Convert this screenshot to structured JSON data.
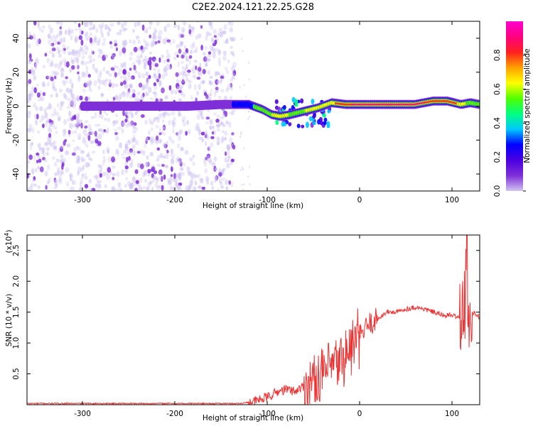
{
  "title": "C2E2.2024.121.22.25.G28",
  "chart_data": [
    {
      "type": "heatmap",
      "xlabel": "Height of straight line (km)",
      "ylabel": "Frequency (Hz)",
      "xlim": [
        -360,
        130
      ],
      "ylim": [
        -50,
        50
      ],
      "xticks": [
        -300,
        -200,
        -100,
        0,
        100
      ],
      "yticks": [
        -40,
        -20,
        0,
        20,
        40
      ],
      "colorbar": {
        "label": "Normalized spectral amplitude",
        "range": [
          0.0,
          1.0
        ],
        "ticks": [
          0.0,
          0.2,
          0.4,
          0.6,
          0.8
        ],
        "colors": [
          "#d0c4f2",
          "#7f2fd8",
          "#4b00e0",
          "#0000ff",
          "#00c8ff",
          "#00ff80",
          "#50ff00",
          "#ffff00",
          "#ffa000",
          "#ff2020",
          "#ff0080",
          "#ff00d0"
        ]
      },
      "noise_region_x": [
        -360,
        -135
      ],
      "ridge": [
        {
          "x": -300,
          "y": 0,
          "amp": 0.12
        },
        {
          "x": -280,
          "y": 0,
          "amp": 0.12
        },
        {
          "x": -220,
          "y": 0,
          "amp": 0.15
        },
        {
          "x": -200,
          "y": 0,
          "amp": 0.15
        },
        {
          "x": -185,
          "y": 0,
          "amp": 0.15
        },
        {
          "x": -150,
          "y": 1,
          "amp": 0.3
        },
        {
          "x": -135,
          "y": 1,
          "amp": 0.35
        },
        {
          "x": -120,
          "y": 1,
          "amp": 0.5
        },
        {
          "x": -105,
          "y": -2,
          "amp": 0.6
        },
        {
          "x": -95,
          "y": -5,
          "amp": 0.7
        },
        {
          "x": -85,
          "y": -6,
          "amp": 0.75
        },
        {
          "x": -75,
          "y": -5,
          "amp": 0.7
        },
        {
          "x": -60,
          "y": -3,
          "amp": 0.7
        },
        {
          "x": -45,
          "y": -1,
          "amp": 0.75
        },
        {
          "x": -30,
          "y": 2,
          "amp": 0.85
        },
        {
          "x": -15,
          "y": 1,
          "amp": 0.9
        },
        {
          "x": 0,
          "y": 1,
          "amp": 0.92
        },
        {
          "x": 20,
          "y": 1,
          "amp": 0.92
        },
        {
          "x": 40,
          "y": 1,
          "amp": 0.92
        },
        {
          "x": 60,
          "y": 1,
          "amp": 0.92
        },
        {
          "x": 80,
          "y": 3,
          "amp": 0.9
        },
        {
          "x": 95,
          "y": 3,
          "amp": 0.9
        },
        {
          "x": 110,
          "y": 1,
          "amp": 0.85
        },
        {
          "x": 120,
          "y": 2,
          "amp": 0.6
        },
        {
          "x": 130,
          "y": 1,
          "amp": 0.6
        }
      ]
    },
    {
      "type": "line",
      "xlabel": "Height of straight line (km)",
      "ylabel": "SNR (10 * v/v)",
      "y_multiplier": "(x10",
      "y_multiplier_exp": "4",
      "y_multiplier_close": ")",
      "xlim": [
        -360,
        130
      ],
      "ylim": [
        0,
        2.75
      ],
      "xticks": [
        -300,
        -200,
        -100,
        0,
        100
      ],
      "yticks": [
        0.5,
        1.0,
        1.5,
        2.0,
        2.5
      ],
      "ytick_labels": [
        "0.5",
        "1.0",
        "1.5",
        "2.0",
        "2.5"
      ],
      "color": "#ee3333",
      "series": [
        {
          "x": [
            -360,
            -300,
            -200,
            -130,
            -115,
            -100,
            -90,
            -80,
            -70,
            -60,
            -50,
            -40,
            -30,
            -20,
            -10,
            0,
            10,
            20,
            30,
            40,
            50,
            60,
            70,
            80,
            90,
            100,
            110,
            114,
            116,
            118,
            120,
            125,
            130
          ],
          "y": [
            0.02,
            0.02,
            0.02,
            0.02,
            0.05,
            0.12,
            0.2,
            0.25,
            0.22,
            0.3,
            0.4,
            0.5,
            0.6,
            0.7,
            0.9,
            1.1,
            1.3,
            1.4,
            1.5,
            1.5,
            1.55,
            1.58,
            1.55,
            1.5,
            1.45,
            1.45,
            1.4,
            1.6,
            2.6,
            1.2,
            1.5,
            1.48,
            1.42
          ]
        }
      ]
    }
  ]
}
